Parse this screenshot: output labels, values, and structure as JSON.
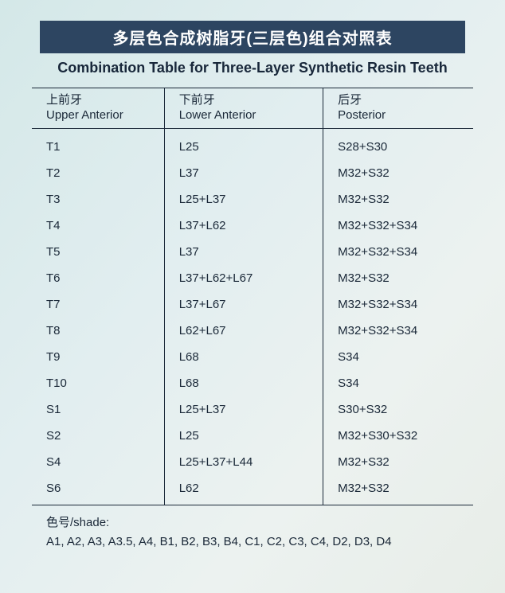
{
  "title_banner_cn": "多层色合成树脂牙(三层色)组合对照表",
  "subtitle_en": "Combination Table for Three-Layer Synthetic Resin Teeth",
  "table": {
    "columns": [
      {
        "cn": "上前牙",
        "en": "Upper Anterior"
      },
      {
        "cn": "下前牙",
        "en": "Lower Anterior"
      },
      {
        "cn": "后牙",
        "en": "Posterior"
      }
    ],
    "rows": [
      [
        "T1",
        "L25",
        "S28+S30"
      ],
      [
        "T2",
        "L37",
        "M32+S32"
      ],
      [
        "T3",
        "L25+L37",
        "M32+S32"
      ],
      [
        "T4",
        "L37+L62",
        "M32+S32+S34"
      ],
      [
        "T5",
        "L37",
        "M32+S32+S34"
      ],
      [
        "T6",
        "L37+L62+L67",
        "M32+S32"
      ],
      [
        "T7",
        "L37+L67",
        "M32+S32+S34"
      ],
      [
        "T8",
        "L62+L67",
        "M32+S32+S34"
      ],
      [
        "T9",
        "L68",
        "S34"
      ],
      [
        "T10",
        "L68",
        "S34"
      ],
      [
        "S1",
        "L25+L37",
        "S30+S32"
      ],
      [
        "S2",
        "L25",
        "M32+S30+S32"
      ],
      [
        "S4",
        "L25+L37+L44",
        "M32+S32"
      ],
      [
        "S6",
        "L62",
        "M32+S32"
      ]
    ]
  },
  "shade": {
    "label": "色号/shade:",
    "list": "A1, A2, A3, A3.5, A4, B1, B2, B3, B4, C1, C2, C3, C4, D2, D3, D4"
  }
}
